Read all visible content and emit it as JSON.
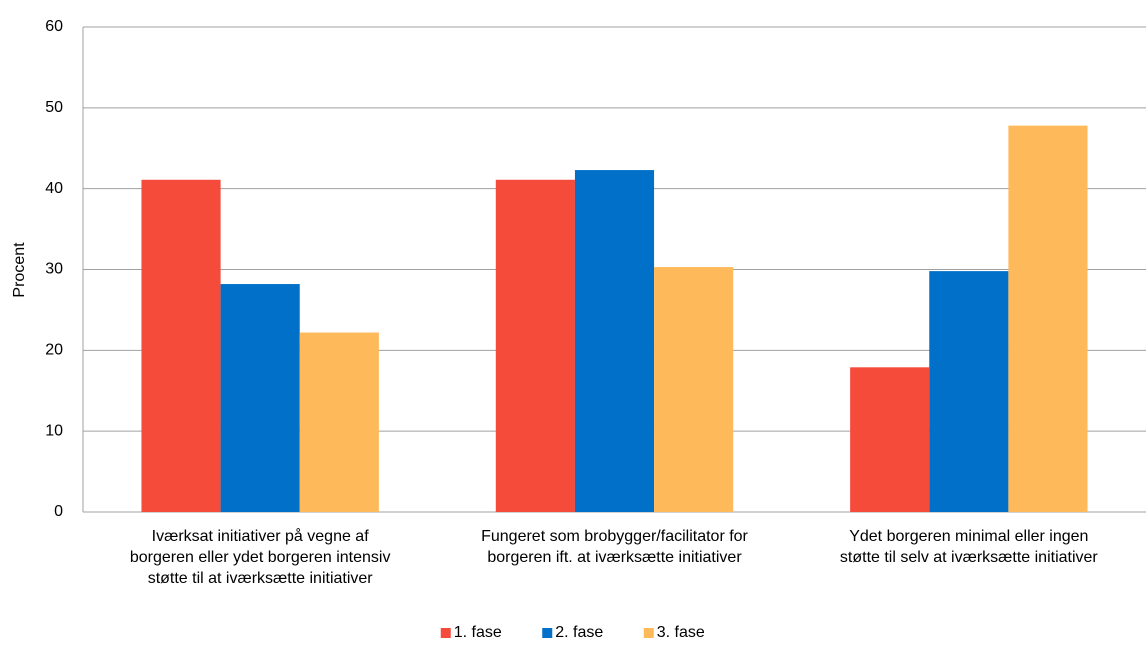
{
  "chart_data": {
    "type": "bar",
    "ylabel": "Procent",
    "categories": [
      "Iværksat initiativer på vegne af\nborgeren eller ydet borgeren intensiv\nstøtte til at iværksætte initiativer",
      "Fungeret som brobygger/facilitator for\nborgeren ift. at iværksætte initiativer",
      "Ydet borgeren minimal eller ingen\nstøtte til selv at iværksætte initiativer"
    ],
    "series": [
      {
        "name": "1. fase",
        "color": "#f44b3b",
        "values": [
          41.1,
          41.1,
          17.9
        ]
      },
      {
        "name": "2. fase",
        "color": "#0070c8",
        "values": [
          28.2,
          42.3,
          29.8
        ]
      },
      {
        "name": "3. fase",
        "color": "#fdb95a",
        "values": [
          22.2,
          30.3,
          47.8
        ]
      }
    ],
    "ylim": [
      0,
      60
    ],
    "yticks": [
      0,
      10,
      20,
      30,
      40,
      50,
      60
    ],
    "grid": true,
    "legend": "bottom"
  }
}
